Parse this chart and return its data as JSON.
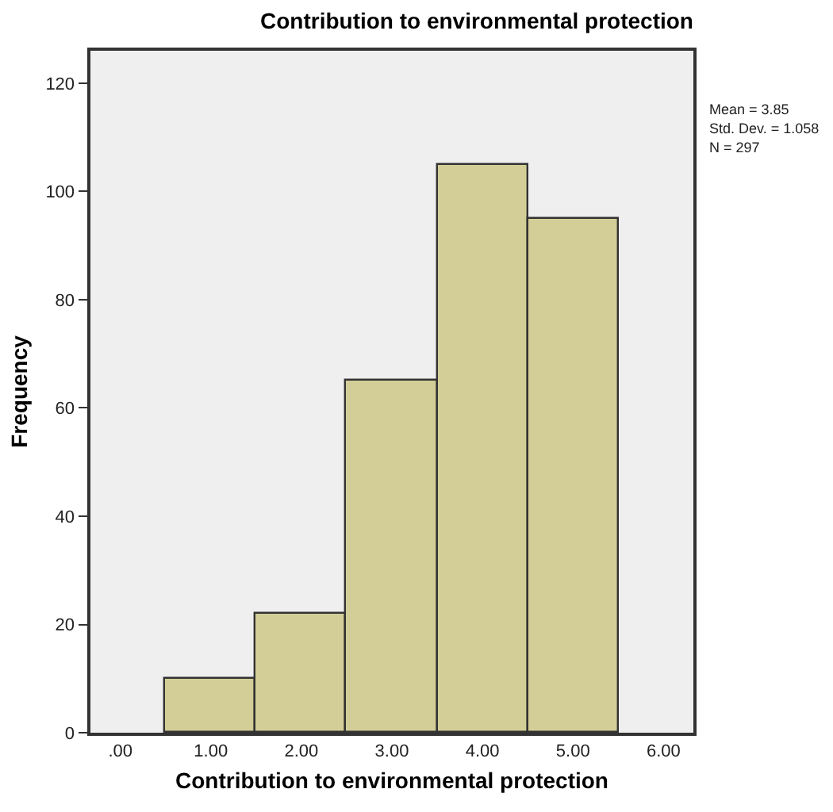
{
  "chart_data": {
    "type": "histogram",
    "title": "Contribution to environmental protection",
    "xlabel": "Contribution to environmental protection",
    "ylabel": "Frequency",
    "bins": [
      0.5,
      1.5,
      2.5,
      3.5,
      4.5,
      5.5
    ],
    "values": [
      10,
      22,
      65,
      105,
      95
    ],
    "color": "#d3ce97",
    "xlim": [
      -0.33,
      6.33
    ],
    "xticks": [
      {
        "value": 0,
        "label": ".00"
      },
      {
        "value": 1,
        "label": "1.00"
      },
      {
        "value": 2,
        "label": "2.00"
      },
      {
        "value": 3,
        "label": "3.00"
      },
      {
        "value": 4,
        "label": "4.00"
      },
      {
        "value": 5,
        "label": "5.00"
      },
      {
        "value": 6,
        "label": "6.00"
      }
    ],
    "ylim": [
      0,
      126
    ],
    "yticks": [
      0,
      20,
      40,
      60,
      80,
      100,
      120
    ],
    "grid": false,
    "annotations": [
      "Mean = 3.85",
      "Std. Dev. = 1.058",
      "N = 297"
    ]
  }
}
